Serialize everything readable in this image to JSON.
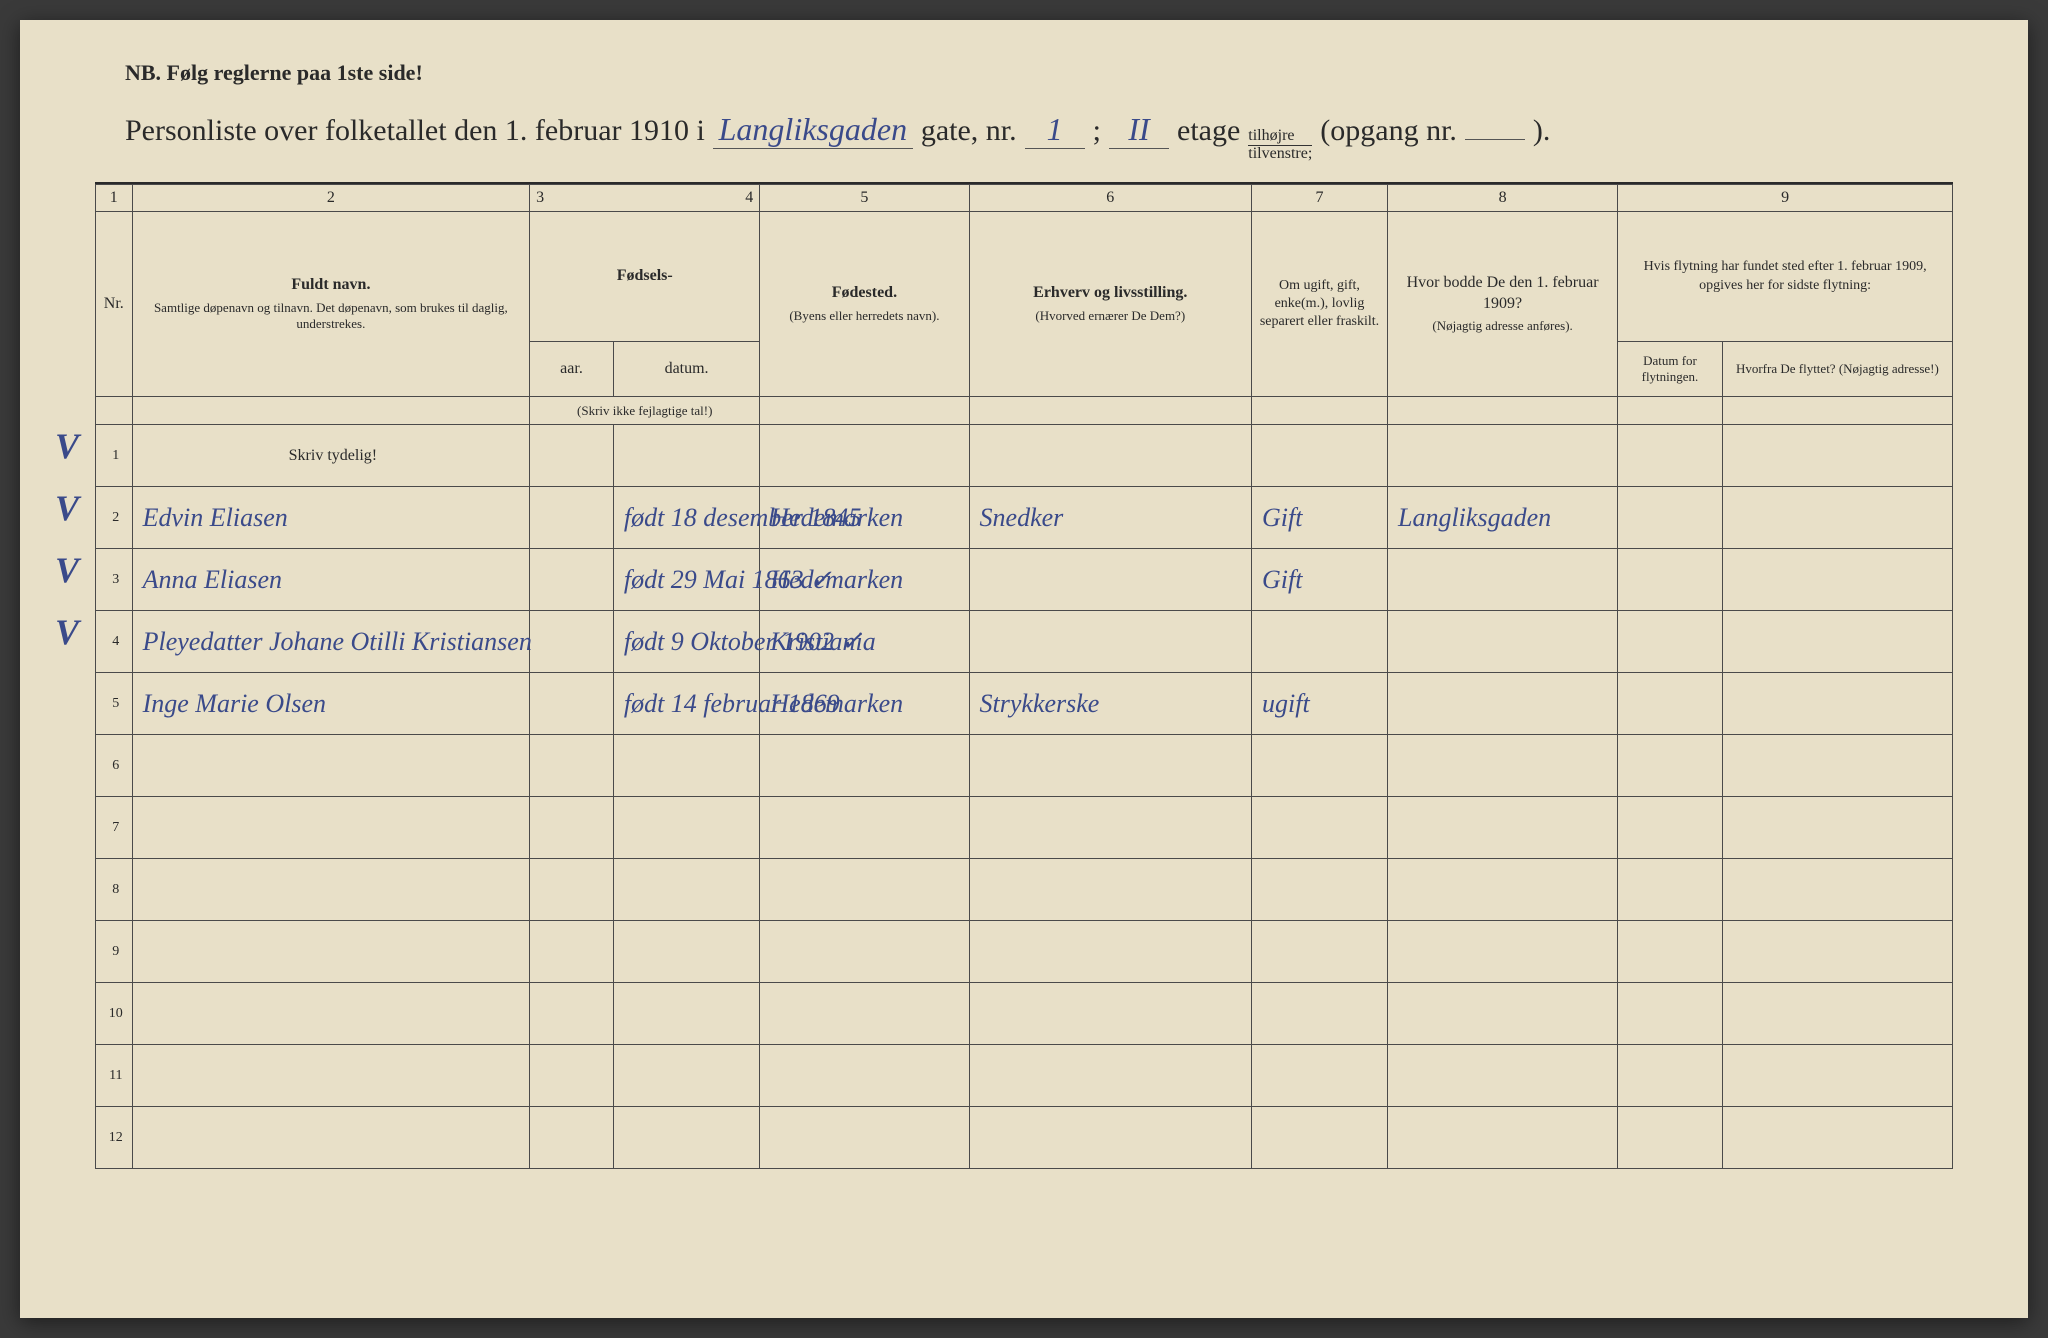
{
  "header": {
    "nb": "NB.  Følg reglerne paa 1ste side!",
    "title_prefix": "Personliste over folketallet den 1. februar 1910 i",
    "street_hw": "Langliksgaden",
    "gate_label": "gate, nr.",
    "gate_nr_hw": "1",
    "semicolon": ";",
    "etage_hw": "II",
    "etage_label": "etage",
    "fraction_top": "tilhøjre",
    "fraction_bot": "tilvenstre;",
    "opgang_label": "(opgang nr.",
    "opgang_hw": "",
    "close_paren": ")."
  },
  "columns": {
    "nums": [
      "1",
      "2",
      "3",
      "4",
      "5",
      "6",
      "7",
      "8",
      "9"
    ],
    "nr_label": "Nr.",
    "c2_title": "Fuldt navn.",
    "c2_sub": "Samtlige døpenavn og tilnavn. Det døpenavn, som brukes til daglig, understrekes.",
    "c34_title": "Fødsels-",
    "c3_sub": "aar.",
    "c4_sub": "datum.",
    "c34_note": "(Skriv ikke fejlagtige tal!)",
    "c5_title": "Fødested.",
    "c5_sub": "(Byens eller herredets navn).",
    "c6_title": "Erhverv og livsstilling.",
    "c6_sub": "(Hvorved ernærer De Dem?)",
    "c7_title": "Om ugift, gift, enke(m.), lovlig separert eller fraskilt.",
    "c8_title": "Hvor bodde De den 1. februar 1909?",
    "c8_sub": "(Nøjagtig adresse anføres).",
    "c9_title": "Hvis flytning har fundet sted efter 1. februar 1909, opgives her for sidste flytning:",
    "c9a_sub": "Datum for flytningen.",
    "c9b_sub": "Hvorfra De flyttet? (Nøjagtig adresse!)",
    "skriv_tydelig": "Skriv tydelig!"
  },
  "rows": [
    {
      "n": "1",
      "name": "",
      "year": "",
      "date": "",
      "birthplace": "",
      "occ": "",
      "status": "",
      "addr1909": "",
      "moved_date": "",
      "moved_from": ""
    },
    {
      "n": "2",
      "name": "Edvin Eliasen",
      "year": "",
      "date": "født 18 desember 1845",
      "birthplace": "Hedemarken",
      "occ": "Snedker",
      "status": "Gift",
      "addr1909": "Langliksgaden",
      "moved_date": "",
      "moved_from": ""
    },
    {
      "n": "3",
      "name": "Anna Eliasen",
      "year": "",
      "date": "født 29 Mai 1863 ✓",
      "birthplace": "Hedemarken",
      "occ": "",
      "status": "Gift",
      "addr1909": "",
      "moved_date": "",
      "moved_from": ""
    },
    {
      "n": "4",
      "name": "Pleyedatter Johane Otilli Kristiansen",
      "year": "",
      "date": "født 9 Oktober 1902 ✓",
      "birthplace": "Kristiania",
      "occ": "",
      "status": "",
      "addr1909": "",
      "moved_date": "",
      "moved_from": ""
    },
    {
      "n": "5",
      "name": "Inge Marie Olsen",
      "year": "",
      "date": "født 14 februar 1869",
      "birthplace": "Hedemarken",
      "occ": "Strykkerske",
      "status": "ugift",
      "addr1909": "",
      "moved_date": "",
      "moved_from": ""
    },
    {
      "n": "6",
      "name": "",
      "year": "",
      "date": "",
      "birthplace": "",
      "occ": "",
      "status": "",
      "addr1909": "",
      "moved_date": "",
      "moved_from": ""
    },
    {
      "n": "7",
      "name": "",
      "year": "",
      "date": "",
      "birthplace": "",
      "occ": "",
      "status": "",
      "addr1909": "",
      "moved_date": "",
      "moved_from": ""
    },
    {
      "n": "8",
      "name": "",
      "year": "",
      "date": "",
      "birthplace": "",
      "occ": "",
      "status": "",
      "addr1909": "",
      "moved_date": "",
      "moved_from": ""
    },
    {
      "n": "9",
      "name": "",
      "year": "",
      "date": "",
      "birthplace": "",
      "occ": "",
      "status": "",
      "addr1909": "",
      "moved_date": "",
      "moved_from": ""
    },
    {
      "n": "10",
      "name": "",
      "year": "",
      "date": "",
      "birthplace": "",
      "occ": "",
      "status": "",
      "addr1909": "",
      "moved_date": "",
      "moved_from": ""
    },
    {
      "n": "11",
      "name": "",
      "year": "",
      "date": "",
      "birthplace": "",
      "occ": "",
      "status": "",
      "addr1909": "",
      "moved_date": "",
      "moved_from": ""
    },
    {
      "n": "12",
      "name": "",
      "year": "",
      "date": "",
      "birthplace": "",
      "occ": "",
      "status": "",
      "addr1909": "",
      "moved_date": "",
      "moved_from": ""
    }
  ],
  "checkmarks": [
    "V",
    "V",
    "V",
    "V"
  ],
  "colors": {
    "paper": "#e8e0c8",
    "ink_print": "#2a2a2a",
    "ink_hand": "#3a4a8a",
    "border": "#4a4a4a"
  }
}
